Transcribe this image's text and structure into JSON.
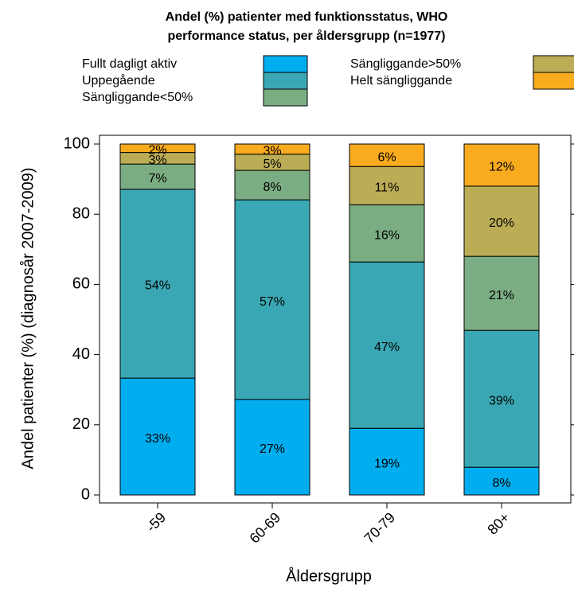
{
  "chart_data": {
    "type": "stacked_bar",
    "title": [
      "Andel (%) patienter med funktionsstatus, WHO",
      "performance status, per åldersgrupp (n=1977)"
    ],
    "x_label": "Åldersgrupp",
    "y_label": "Andel patienter (%) (diagnosår 2007-2009)",
    "categories": [
      "-59",
      "60-69",
      "70-79",
      "80+"
    ],
    "series": [
      {
        "name": "Fullt dagligt aktiv",
        "color": "#00aeef",
        "values": [
          33.3,
          27.2,
          19.0,
          7.9
        ],
        "value_labels": [
          "33%",
          "27%",
          "19%",
          "8%"
        ]
      },
      {
        "name": "Uppegående",
        "color": "#3aa8b4",
        "values": [
          53.8,
          56.9,
          47.4,
          39.0
        ],
        "value_labels": [
          "54%",
          "57%",
          "47%",
          "39%"
        ]
      },
      {
        "name": "Sängliggande<50%",
        "color": "#7bad82",
        "values": [
          7.2,
          8.4,
          16.3,
          21.1
        ],
        "value_labels": [
          "7%",
          "8%",
          "16%",
          "21%"
        ]
      },
      {
        "name": "Sängliggande>50%",
        "color": "#bbad55",
        "values": [
          3.3,
          4.6,
          10.9,
          20.0
        ],
        "value_labels": [
          "3%",
          "5%",
          "11%",
          "20%"
        ]
      },
      {
        "name": "Helt sängliggande",
        "color": "#f9ab1e",
        "values": [
          2.4,
          2.9,
          6.4,
          12.0
        ],
        "value_labels": [
          "2%",
          "3%",
          "6%",
          "12%"
        ]
      }
    ],
    "ylim": [
      0,
      100
    ],
    "yticks": [
      0,
      20,
      40,
      60,
      80,
      100
    ]
  }
}
